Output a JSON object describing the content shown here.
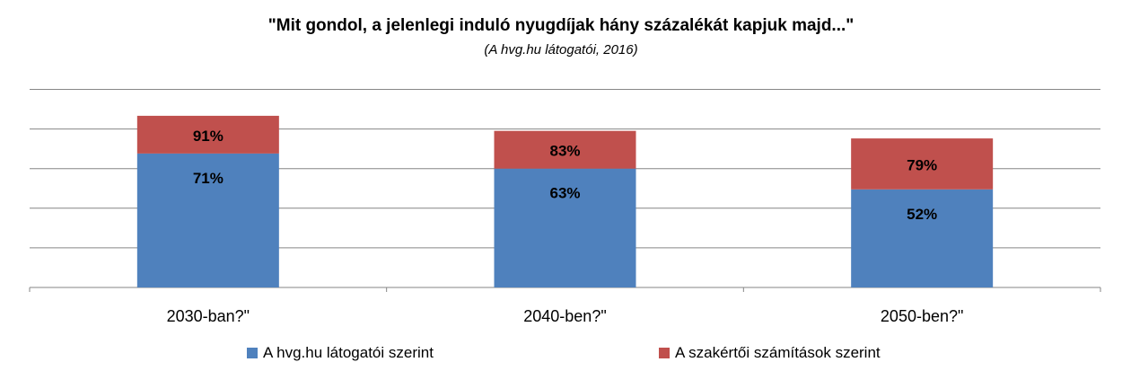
{
  "chart_data": {
    "type": "bar",
    "stacked": true,
    "title": "\"Mit gondol, a jelenlegi induló nyugdíjak hány százalékát kapjuk majd...\"",
    "subtitle": "(A hvg.hu látogatói, 2016)",
    "categories": [
      "2030-ban?\"",
      "2040-ben?\"",
      "2050-ben?\""
    ],
    "series": [
      {
        "name": "A hvg.hu látogatói szerint",
        "values": [
          71,
          63,
          52
        ],
        "labels": [
          "71%",
          "63%",
          "52%"
        ],
        "color": "#4f81bd"
      },
      {
        "name": "A szakértői számítások szerint",
        "values": [
          91,
          83,
          79
        ],
        "labels": [
          "91%",
          "83%",
          "79%"
        ],
        "color": "#c0504d"
      }
    ],
    "grid": true,
    "legend": "bottom"
  }
}
